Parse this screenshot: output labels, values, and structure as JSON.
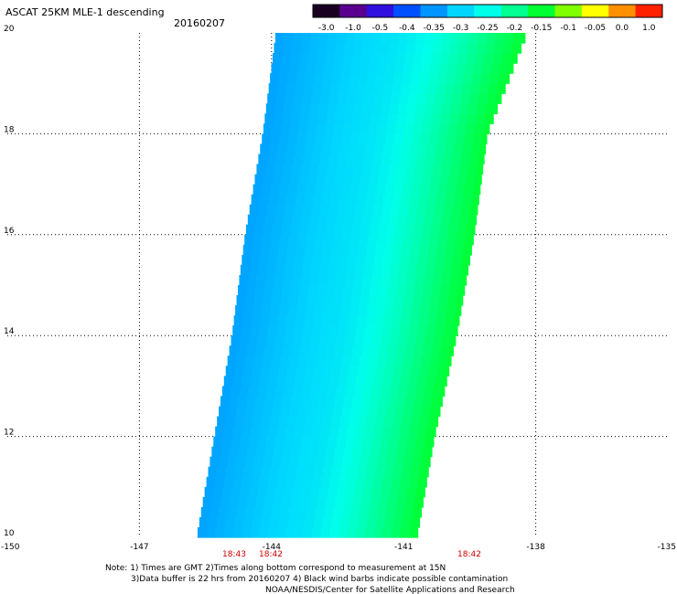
{
  "header": {
    "product": "ASCAT 25KM MLE-1 descending",
    "date": "20160207"
  },
  "colorbar": {
    "ticks": [
      "-3.0",
      "-1.0",
      "-0.5",
      "-0.4",
      "-0.35",
      "-0.3",
      "-0.25",
      "-0.2",
      "-0.15",
      "-0.1",
      "-0.05",
      "0.0",
      "1.0"
    ],
    "colors": [
      "#1a0020",
      "#5a0090",
      "#3010e0",
      "#0050ff",
      "#0095ff",
      "#00d6ff",
      "#00ffea",
      "#00ff90",
      "#00ff30",
      "#80ff00",
      "#ffff00",
      "#ff9000",
      "#ff2000"
    ]
  },
  "time_labels": [
    "18:43",
    "18:42",
    "18:42"
  ],
  "notes": [
    "Note: 1) Times are GMT 2)Times along bottom correspond to measurement at 15N",
    "3)Data buffer is 22 hrs from 20160207 4) Black wind barbs indicate possible contamination",
    "NOAA/NESDIS/Center for Satellite Applications and Research"
  ],
  "chart_data": {
    "type": "heatmap",
    "title": "ASCAT 25KM MLE-1 descending",
    "subtitle": "20160207",
    "xlabel": "",
    "ylabel": "",
    "xlim": [
      -150,
      -135
    ],
    "ylim": [
      10,
      20
    ],
    "x_ticks": [
      "-150",
      "-147",
      "-144",
      "-141",
      "-138",
      "-135"
    ],
    "y_ticks": [
      "10",
      "12",
      "14",
      "16",
      "18",
      "20"
    ],
    "grid": true,
    "swath": {
      "lat_values": [
        10,
        12,
        14,
        16,
        18,
        20
      ],
      "west_lon": [
        -145.7,
        -145.3,
        -144.9,
        -144.6,
        -144.2,
        -143.9
      ],
      "east_lon": [
        -140.7,
        -140.3,
        -139.8,
        -139.4,
        -139.1,
        -138.2
      ]
    },
    "value_by_longitude_fraction": {
      "fraction": [
        0.0,
        0.5,
        0.75,
        1.0
      ],
      "value": [
        -0.34,
        -0.28,
        -0.22,
        -0.15
      ]
    }
  }
}
